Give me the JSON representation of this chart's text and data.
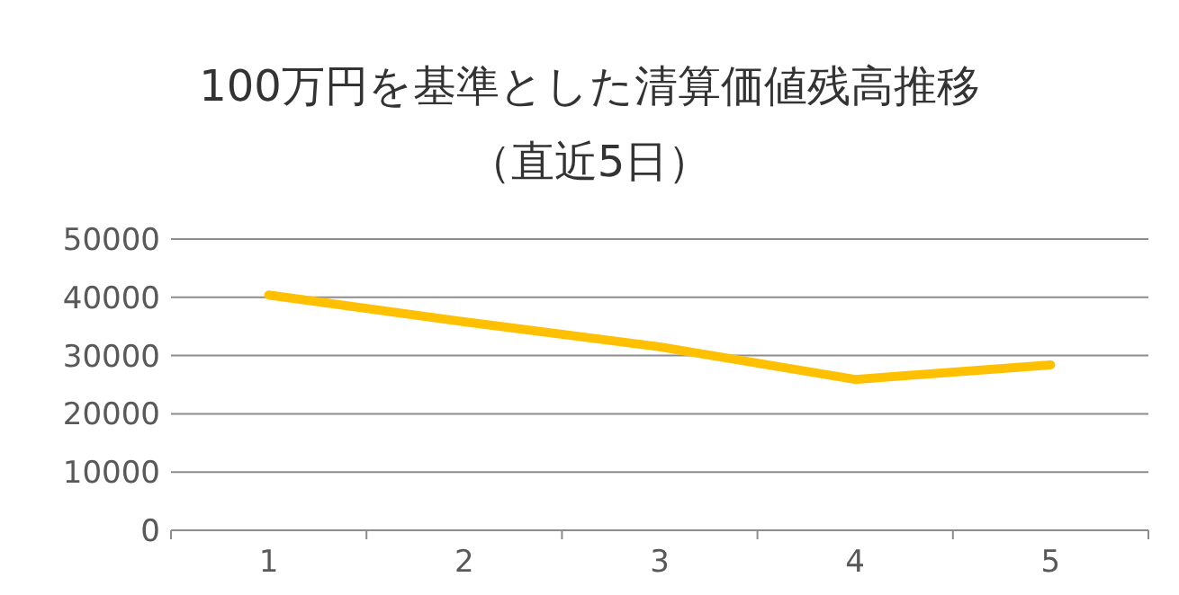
{
  "chart_data": {
    "type": "line",
    "title": "100万円を基準とした清算価値残高推移",
    "subtitle": "（直近5日）",
    "categories": [
      "1",
      "2",
      "3",
      "4",
      "5"
    ],
    "series": [
      {
        "color": "#ffc000",
        "values": [
          40400,
          35800,
          31500,
          25900,
          28400
        ]
      }
    ],
    "ylim": [
      0,
      50000
    ],
    "yticks": [
      0,
      10000,
      20000,
      30000,
      40000,
      50000
    ],
    "grid": "y",
    "marker": "none",
    "line_style": "solid"
  }
}
